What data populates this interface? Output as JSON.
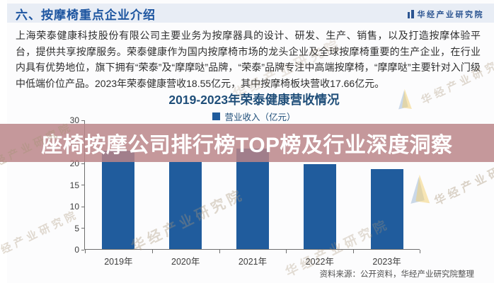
{
  "header": {
    "title": "六、按摩椅重点企业介绍",
    "logo_text": "华经产业研究院"
  },
  "intro_paragraph": "上海荣泰健康科技股份有限公司主要业务为按摩器具的设计、研发、生产、销售，以及打造按摩体验平台，提供共享按摩服务。荣泰健康作为国内按摩椅市场的龙头企业及全球按摩椅重要的生产企业，在行业内具有优势地位，旗下拥有“荣泰”及“摩摩哒”品牌，“荣泰”品牌专注中高端按摩椅，“摩摩哒”主要针对入门级中低端价位产品。2023年荣泰健康营收18.55亿元，其中按摩椅板块营收17.66亿元。",
  "overlay_banner": {
    "text": "座椅按摩公司排行榜TOP榜及行业深度洞察",
    "bg_color": "#ba8488",
    "text_color": "#ffffff"
  },
  "chart_data": {
    "type": "bar",
    "title": "2019-2023年荣泰健康营收情况",
    "legend": [
      {
        "label": "营业收入（亿元）",
        "color": "#205c9d"
      }
    ],
    "categories": [
      "2019年",
      "2020年",
      "2021年",
      "2022年",
      "2023年"
    ],
    "values": [
      22.8,
      20.2,
      23.3,
      19.7,
      18.55
    ],
    "unit": "亿元",
    "ylim": [
      0,
      30
    ],
    "yticks": [
      0,
      5,
      10,
      15,
      20,
      25,
      30
    ],
    "grid": false,
    "legend_position": "top-center",
    "bar_color": "#205c9d",
    "source_note": "资料来源：公开资料，华经产业研究院整理"
  },
  "watermark": {
    "text": "华经产业研究院"
  },
  "colors": {
    "accent_blue": "#205c9d",
    "title_navy": "#1f4e79",
    "header_blue": "#1d55a0",
    "banner_pink": "#ba8488",
    "header_band": "#e8edf5"
  }
}
